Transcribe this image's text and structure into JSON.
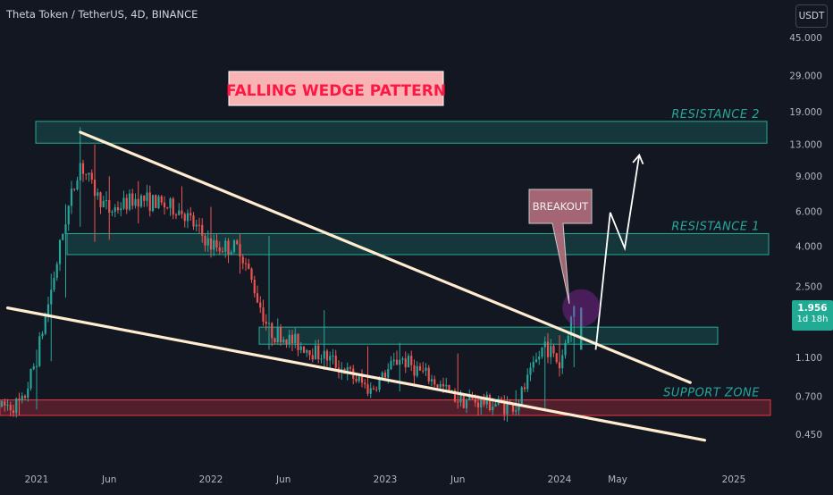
{
  "header": {
    "symbol_title": "Theta Token / TetherUS, 4D, BINANCE",
    "currency_button": "USDT"
  },
  "price_tag": {
    "price": "1.956",
    "countdown": "1d 18h"
  },
  "colors": {
    "background": "#131722",
    "up_candle": "#26a69a",
    "down_candle": "#ef5350",
    "zone_fill": "#22ab94",
    "support_fill": "#f23645",
    "trendline": "#ffecd1",
    "zone_label": "#26a69a",
    "title_box_fill": "#f8b4b4",
    "title_text": "#ff1744",
    "breakout_box": "#b56f7e"
  },
  "chart_data": {
    "type": "candlestick",
    "x_axis": {
      "ticks": [
        "2021",
        "Jun",
        "2022",
        "Jun",
        "2023",
        "Jun",
        "2024",
        "May",
        "2025"
      ]
    },
    "y_axis": {
      "scale": "log",
      "ticks": [
        "45.000",
        "29.000",
        "19.000",
        "13.000",
        "9.000",
        "6.000",
        "4.000",
        "2.500",
        "1.100",
        "0.700",
        "0.450"
      ],
      "range": [
        0.37,
        48
      ]
    },
    "last_price": 1.956,
    "annotations": {
      "pattern_title": "FALLING WEDGE PATTERN",
      "breakout_label": "BREAKOUT",
      "zones": [
        {
          "label": "RESISTANCE 2",
          "low": 13.2,
          "high": 17.0,
          "type": "resistance"
        },
        {
          "label": "RESISTANCE 1",
          "low": 3.62,
          "high": 4.62,
          "type": "resistance"
        },
        {
          "label": "",
          "low": 1.28,
          "high": 1.56,
          "type": "resistance"
        },
        {
          "label": "SUPPORT ZONE",
          "low": 0.56,
          "high": 0.67,
          "type": "support"
        }
      ],
      "trendlines": [
        {
          "name": "upper-wedge-line",
          "from": {
            "date": "2021-04",
            "price": 15.0
          },
          "to": {
            "date": "2024-10",
            "price": 0.82
          }
        },
        {
          "name": "lower-wedge-line",
          "from": {
            "date": "2020-11",
            "price": 1.95
          },
          "to": {
            "date": "2024-11",
            "price": 0.42
          }
        }
      ],
      "projection_path": [
        {
          "date": "2024-03",
          "price": 1.2
        },
        {
          "date": "2024-04",
          "price": 5.9
        },
        {
          "date": "2024-05",
          "price": 3.9
        },
        {
          "date": "2024-06",
          "price": 11.5
        }
      ]
    },
    "candles_ohlc": [
      {
        "date": "2020-12",
        "o": 0.6,
        "h": 0.68,
        "l": 0.56,
        "c": 0.64
      },
      {
        "date": "2021-01",
        "o": 0.64,
        "h": 1.2,
        "l": 0.6,
        "c": 1.1
      },
      {
        "date": "2021-02",
        "o": 1.1,
        "h": 2.9,
        "l": 1.05,
        "c": 2.4
      },
      {
        "date": "2021-03",
        "o": 2.4,
        "h": 6.5,
        "l": 2.2,
        "c": 5.5
      },
      {
        "date": "2021-04",
        "o": 5.5,
        "h": 15.9,
        "l": 5.0,
        "c": 10.5
      },
      {
        "date": "2021-05",
        "o": 10.5,
        "h": 13.0,
        "l": 4.2,
        "c": 7.5
      },
      {
        "date": "2021-06",
        "o": 7.5,
        "h": 9.0,
        "l": 4.3,
        "c": 6.0
      },
      {
        "date": "2021-08",
        "o": 6.0,
        "h": 8.5,
        "l": 5.2,
        "c": 7.0
      },
      {
        "date": "2021-11",
        "o": 7.0,
        "h": 8.0,
        "l": 5.5,
        "c": 6.0
      },
      {
        "date": "2022-01",
        "o": 6.0,
        "h": 6.3,
        "l": 3.5,
        "c": 4.0
      },
      {
        "date": "2022-03",
        "o": 4.0,
        "h": 4.6,
        "l": 2.9,
        "c": 3.9
      },
      {
        "date": "2022-05",
        "o": 3.9,
        "h": 4.5,
        "l": 1.2,
        "c": 1.5
      },
      {
        "date": "2022-09",
        "o": 1.5,
        "h": 1.9,
        "l": 0.95,
        "c": 1.1
      },
      {
        "date": "2022-12",
        "o": 1.1,
        "h": 1.25,
        "l": 0.7,
        "c": 0.75
      },
      {
        "date": "2023-02",
        "o": 0.75,
        "h": 1.3,
        "l": 0.74,
        "c": 1.1
      },
      {
        "date": "2023-06",
        "o": 1.1,
        "h": 1.15,
        "l": 0.62,
        "c": 0.68
      },
      {
        "date": "2023-10",
        "o": 0.68,
        "h": 0.75,
        "l": 0.58,
        "c": 0.62
      },
      {
        "date": "2023-12",
        "o": 0.62,
        "h": 1.4,
        "l": 0.6,
        "c": 1.3
      },
      {
        "date": "2024-01",
        "o": 1.3,
        "h": 1.42,
        "l": 0.88,
        "c": 1.0
      },
      {
        "date": "2024-02",
        "o": 1.0,
        "h": 1.956,
        "l": 0.98,
        "c": 1.956
      }
    ]
  }
}
